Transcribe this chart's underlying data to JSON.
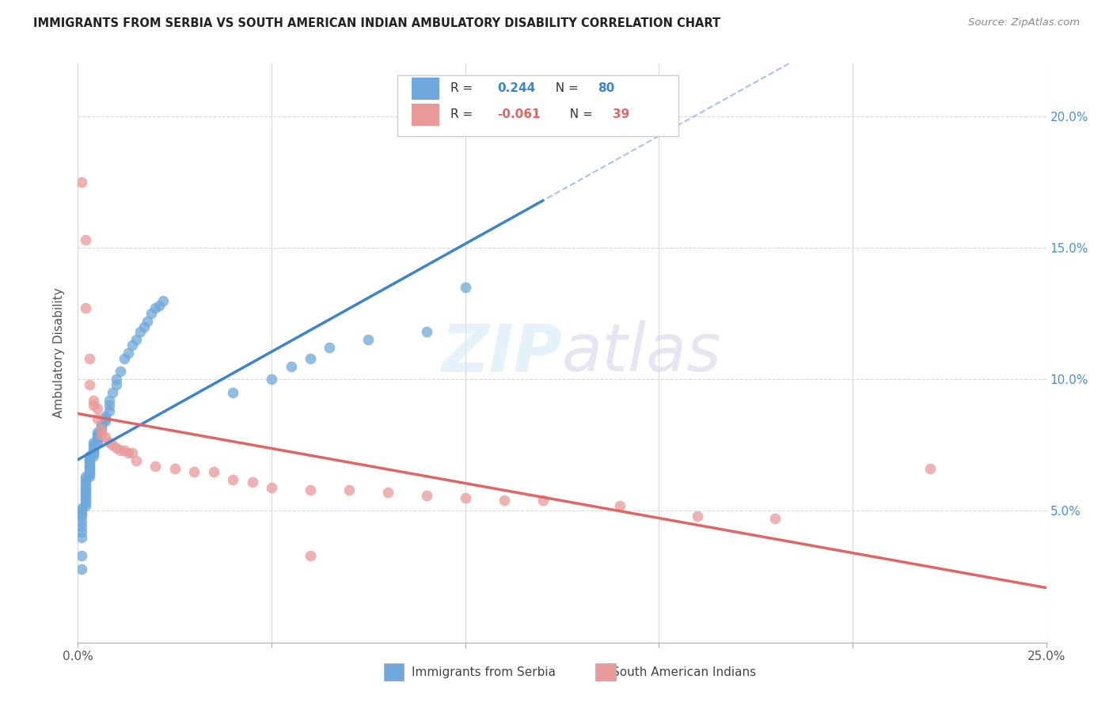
{
  "title": "IMMIGRANTS FROM SERBIA VS SOUTH AMERICAN INDIAN AMBULATORY DISABILITY CORRELATION CHART",
  "source": "Source: ZipAtlas.com",
  "ylabel": "Ambulatory Disability",
  "right_yticks": [
    "5.0%",
    "10.0%",
    "15.0%",
    "20.0%"
  ],
  "right_ytick_vals": [
    0.05,
    0.1,
    0.15,
    0.2
  ],
  "color_serbia": "#6fa8dc",
  "color_india": "#ea9999",
  "color_serbia_line": "#3d85c8",
  "color_india_line": "#e06666",
  "color_dashed": "#a4c2f4",
  "r_serbia": 0.244,
  "n_serbia": 80,
  "r_india": -0.061,
  "n_india": 39,
  "xlim": [
    0.0,
    0.25
  ],
  "ylim": [
    0.0,
    0.22
  ],
  "serbia_x": [
    0.001,
    0.001,
    0.001,
    0.001,
    0.001,
    0.001,
    0.001,
    0.001,
    0.001,
    0.001,
    0.002,
    0.002,
    0.002,
    0.002,
    0.002,
    0.002,
    0.002,
    0.002,
    0.002,
    0.002,
    0.002,
    0.002,
    0.003,
    0.003,
    0.003,
    0.003,
    0.003,
    0.003,
    0.003,
    0.003,
    0.003,
    0.003,
    0.003,
    0.003,
    0.003,
    0.004,
    0.004,
    0.004,
    0.004,
    0.004,
    0.004,
    0.004,
    0.004,
    0.005,
    0.005,
    0.005,
    0.005,
    0.005,
    0.006,
    0.006,
    0.006,
    0.007,
    0.007,
    0.007,
    0.008,
    0.008,
    0.008,
    0.009,
    0.01,
    0.01,
    0.011,
    0.012,
    0.013,
    0.014,
    0.015,
    0.016,
    0.017,
    0.018,
    0.019,
    0.02,
    0.021,
    0.022,
    0.04,
    0.05,
    0.055,
    0.06,
    0.065,
    0.075,
    0.09,
    0.1
  ],
  "serbia_y": [
    0.028,
    0.033,
    0.04,
    0.042,
    0.044,
    0.046,
    0.048,
    0.049,
    0.05,
    0.051,
    0.052,
    0.053,
    0.054,
    0.055,
    0.056,
    0.057,
    0.058,
    0.059,
    0.06,
    0.061,
    0.062,
    0.063,
    0.063,
    0.064,
    0.065,
    0.065,
    0.066,
    0.067,
    0.067,
    0.068,
    0.069,
    0.069,
    0.07,
    0.07,
    0.071,
    0.071,
    0.072,
    0.072,
    0.073,
    0.073,
    0.074,
    0.075,
    0.076,
    0.076,
    0.077,
    0.078,
    0.079,
    0.08,
    0.081,
    0.082,
    0.083,
    0.084,
    0.085,
    0.086,
    0.088,
    0.09,
    0.092,
    0.095,
    0.098,
    0.1,
    0.103,
    0.108,
    0.11,
    0.113,
    0.115,
    0.118,
    0.12,
    0.122,
    0.125,
    0.127,
    0.128,
    0.13,
    0.095,
    0.1,
    0.105,
    0.108,
    0.112,
    0.115,
    0.118,
    0.135
  ],
  "india_x": [
    0.001,
    0.002,
    0.002,
    0.003,
    0.003,
    0.004,
    0.004,
    0.005,
    0.005,
    0.006,
    0.006,
    0.007,
    0.008,
    0.009,
    0.01,
    0.011,
    0.012,
    0.013,
    0.014,
    0.015,
    0.02,
    0.025,
    0.03,
    0.035,
    0.04,
    0.045,
    0.05,
    0.06,
    0.07,
    0.08,
    0.09,
    0.1,
    0.11,
    0.12,
    0.14,
    0.16,
    0.18,
    0.22,
    0.06
  ],
  "india_y": [
    0.175,
    0.153,
    0.127,
    0.108,
    0.098,
    0.092,
    0.09,
    0.089,
    0.085,
    0.081,
    0.079,
    0.078,
    0.076,
    0.075,
    0.074,
    0.073,
    0.073,
    0.072,
    0.072,
    0.069,
    0.067,
    0.066,
    0.065,
    0.065,
    0.062,
    0.061,
    0.059,
    0.058,
    0.058,
    0.057,
    0.056,
    0.055,
    0.054,
    0.054,
    0.052,
    0.048,
    0.047,
    0.066,
    0.033
  ]
}
